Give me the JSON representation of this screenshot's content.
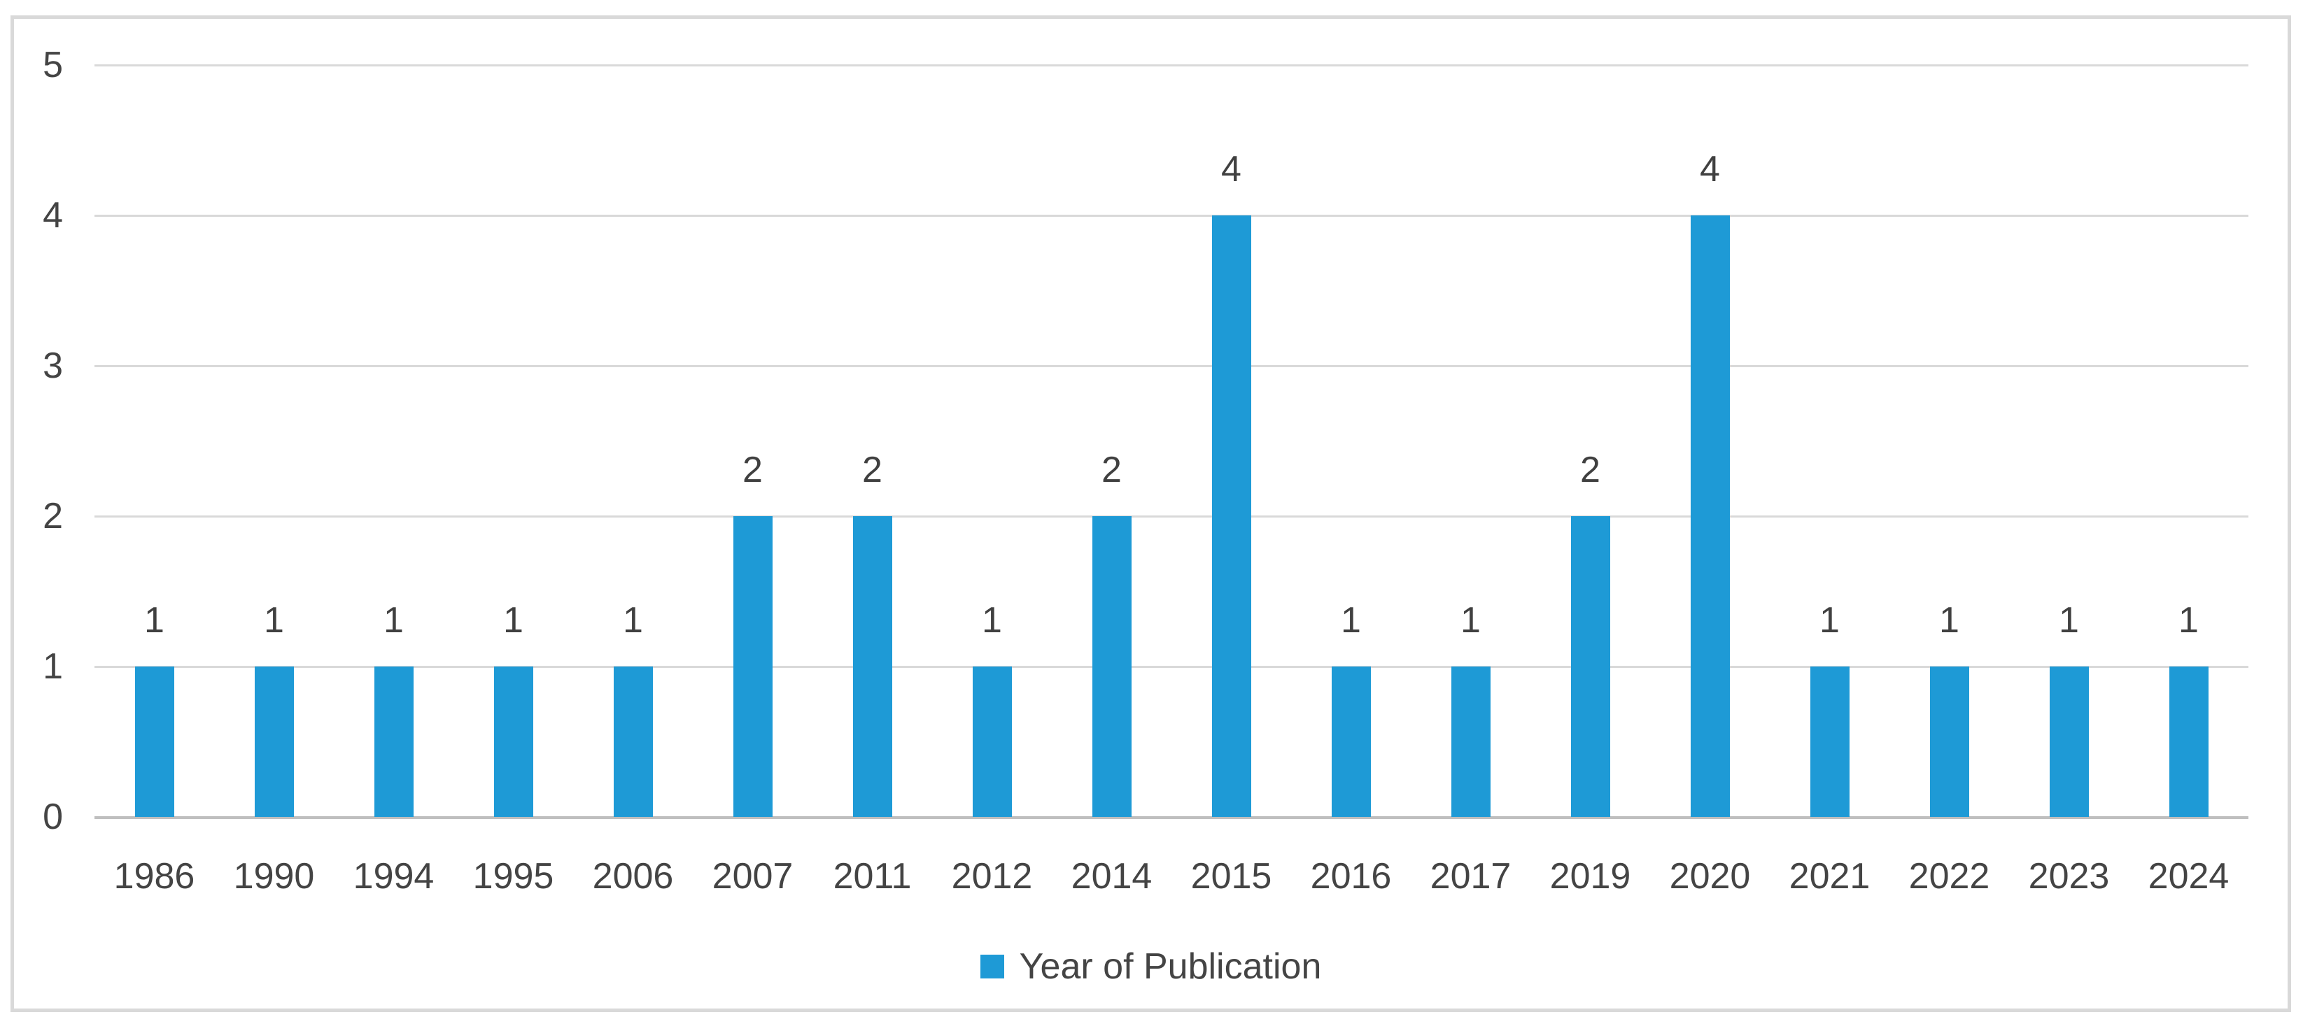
{
  "chart_data": {
    "type": "bar",
    "title": "",
    "xlabel": "",
    "ylabel": "",
    "categories": [
      "1986",
      "1990",
      "1994",
      "1995",
      "2006",
      "2007",
      "2011",
      "2012",
      "2014",
      "2015",
      "2016",
      "2017",
      "2019",
      "2020",
      "2021",
      "2022",
      "2023",
      "2024"
    ],
    "values": [
      1,
      1,
      1,
      1,
      1,
      2,
      2,
      1,
      2,
      4,
      1,
      1,
      2,
      4,
      1,
      1,
      1,
      1
    ],
    "series_name": "Year of Publication",
    "data_labels": [
      1,
      1,
      1,
      1,
      1,
      2,
      2,
      1,
      2,
      4,
      1,
      1,
      2,
      4,
      1,
      1,
      1,
      1
    ],
    "ylim": [
      0,
      5
    ],
    "yticks": [
      0,
      1,
      2,
      3,
      4,
      5
    ],
    "grid": "horizontal",
    "legend_position": "bottom",
    "colors": {
      "bar": "#1E9AD6",
      "gridline": "#D9D9D9",
      "axis_line": "#BFBFBF",
      "text": "#444444",
      "frame_border": "#D9D9D9",
      "background": "#FFFFFF"
    }
  },
  "legend": {
    "label": "Year of Publication"
  }
}
